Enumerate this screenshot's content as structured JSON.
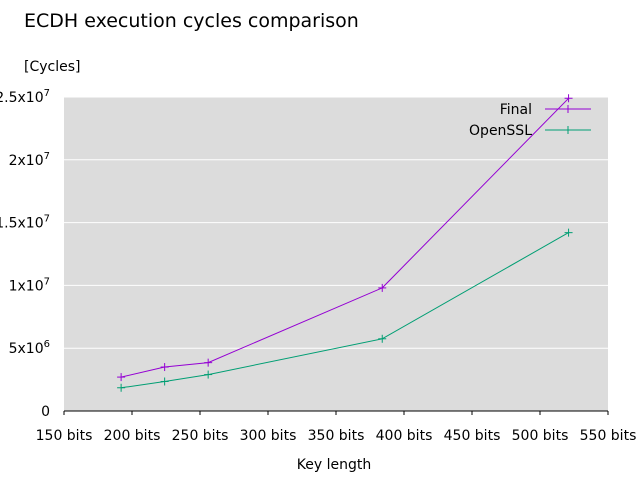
{
  "chart_data": {
    "type": "line",
    "title": "ECDH execution cycles comparison",
    "xlabel": "Key length",
    "ylabel": "[Cycles]",
    "xlim": [
      150,
      550
    ],
    "ylim": [
      0,
      25000000
    ],
    "x_ticks": [
      {
        "value": 150,
        "label": "150 bits"
      },
      {
        "value": 200,
        "label": "200 bits"
      },
      {
        "value": 250,
        "label": "250 bits"
      },
      {
        "value": 300,
        "label": "300 bits"
      },
      {
        "value": 350,
        "label": "350 bits"
      },
      {
        "value": 400,
        "label": "400 bits"
      },
      {
        "value": 450,
        "label": "450 bits"
      },
      {
        "value": 500,
        "label": "500 bits"
      },
      {
        "value": 550,
        "label": "550 bits"
      }
    ],
    "y_ticks": [
      {
        "value": 0,
        "mant": "0",
        "exp": ""
      },
      {
        "value": 5000000,
        "mant": "5x10",
        "exp": "6"
      },
      {
        "value": 10000000,
        "mant": "1x10",
        "exp": "7"
      },
      {
        "value": 15000000,
        "mant": "1.5x10",
        "exp": "7"
      },
      {
        "value": 20000000,
        "mant": "2x10",
        "exp": "7"
      },
      {
        "value": 25000000,
        "mant": "2.5x10",
        "exp": "7"
      }
    ],
    "grid": true,
    "background_color": "#dcdcdc",
    "legend_position": "top-right",
    "series": [
      {
        "name": "Final",
        "color": "#9400d3",
        "points": [
          [
            192,
            2700000
          ],
          [
            224,
            3500000
          ],
          [
            256,
            3850000
          ],
          [
            384,
            9800000
          ],
          [
            521,
            24900000
          ]
        ]
      },
      {
        "name": "OpenSSL",
        "color": "#009e73",
        "points": [
          [
            192,
            1850000
          ],
          [
            224,
            2350000
          ],
          [
            256,
            2900000
          ],
          [
            384,
            5750000
          ],
          [
            521,
            14200000
          ]
        ]
      }
    ]
  }
}
